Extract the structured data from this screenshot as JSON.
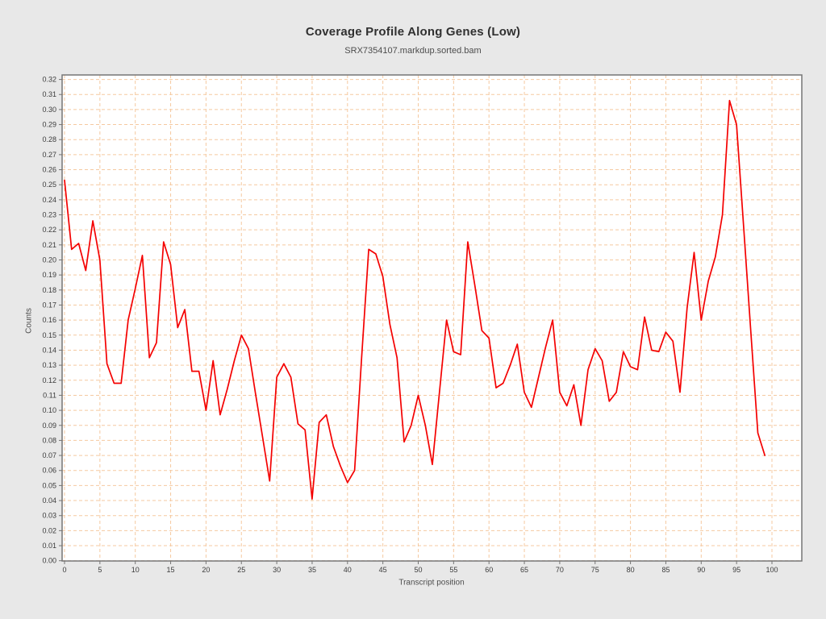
{
  "title": "Coverage Profile Along Genes (Low)",
  "subtitle": "SRX7354107.markdup.sorted.bam",
  "colors": {
    "background": "#e8e8e8",
    "plot_background": "#ffffff",
    "grid": "#f5c9a0",
    "frame": "#757575",
    "line": "#f40000",
    "tick_text": "#3b3b3b",
    "title_text": "#303030",
    "label_text": "#4d4d4d"
  },
  "chart_data": {
    "type": "line",
    "title": "Coverage Profile Along Genes (Low)",
    "subtitle": "SRX7354107.markdup.sorted.bam",
    "xlabel": "Transcript position",
    "ylabel": "Counts",
    "xlim": [
      0,
      100
    ],
    "ylim": [
      0.0,
      0.32
    ],
    "grid": true,
    "grid_style": "dashed",
    "legend_position": "none",
    "x_ticks": [
      0,
      5,
      10,
      15,
      20,
      25,
      30,
      35,
      40,
      45,
      50,
      55,
      60,
      65,
      70,
      75,
      80,
      85,
      90,
      95,
      100
    ],
    "y_ticks": [
      0.0,
      0.01,
      0.02,
      0.03,
      0.04,
      0.05,
      0.06,
      0.07,
      0.08,
      0.09,
      0.1,
      0.11,
      0.12,
      0.13,
      0.14,
      0.15,
      0.16,
      0.17,
      0.18,
      0.19,
      0.2,
      0.21,
      0.22,
      0.23,
      0.24,
      0.25,
      0.26,
      0.27,
      0.28,
      0.29,
      0.3,
      0.31,
      0.32
    ],
    "series": [
      {
        "name": "SRX7354107.markdup.sorted.bam",
        "color": "#f40000",
        "x": [
          0,
          1,
          2,
          3,
          4,
          5,
          6,
          7,
          8,
          9,
          10,
          11,
          12,
          13,
          14,
          15,
          16,
          17,
          18,
          19,
          20,
          21,
          22,
          23,
          24,
          25,
          26,
          27,
          28,
          29,
          30,
          31,
          32,
          33,
          34,
          35,
          36,
          37,
          38,
          39,
          40,
          41,
          42,
          43,
          44,
          45,
          46,
          47,
          48,
          49,
          50,
          51,
          52,
          53,
          54,
          55,
          56,
          57,
          58,
          59,
          60,
          61,
          62,
          63,
          64,
          65,
          66,
          67,
          68,
          69,
          70,
          71,
          72,
          73,
          74,
          75,
          76,
          77,
          78,
          79,
          80,
          81,
          82,
          83,
          84,
          85,
          86,
          87,
          88,
          89,
          90,
          91,
          92,
          93,
          94,
          95,
          96,
          97,
          98,
          99
        ],
        "values": [
          0.253,
          0.207,
          0.211,
          0.193,
          0.226,
          0.2,
          0.131,
          0.118,
          0.118,
          0.16,
          0.181,
          0.203,
          0.135,
          0.145,
          0.212,
          0.197,
          0.155,
          0.167,
          0.126,
          0.126,
          0.1,
          0.133,
          0.097,
          0.114,
          0.133,
          0.15,
          0.141,
          0.111,
          0.082,
          0.053,
          0.122,
          0.131,
          0.122,
          0.091,
          0.087,
          0.041,
          0.092,
          0.097,
          0.076,
          0.063,
          0.052,
          0.06,
          0.135,
          0.207,
          0.204,
          0.189,
          0.157,
          0.135,
          0.079,
          0.09,
          0.11,
          0.09,
          0.064,
          0.112,
          0.16,
          0.139,
          0.137,
          0.212,
          0.183,
          0.153,
          0.148,
          0.115,
          0.118,
          0.13,
          0.144,
          0.112,
          0.102,
          0.122,
          0.142,
          0.16,
          0.112,
          0.103,
          0.117,
          0.09,
          0.127,
          0.141,
          0.133,
          0.106,
          0.112,
          0.139,
          0.129,
          0.127,
          0.162,
          0.14,
          0.139,
          0.152,
          0.146,
          0.112,
          0.168,
          0.205,
          0.16,
          0.186,
          0.202,
          0.23,
          0.306,
          0.29,
          0.222,
          0.153,
          0.085,
          0.07
        ]
      }
    ]
  }
}
